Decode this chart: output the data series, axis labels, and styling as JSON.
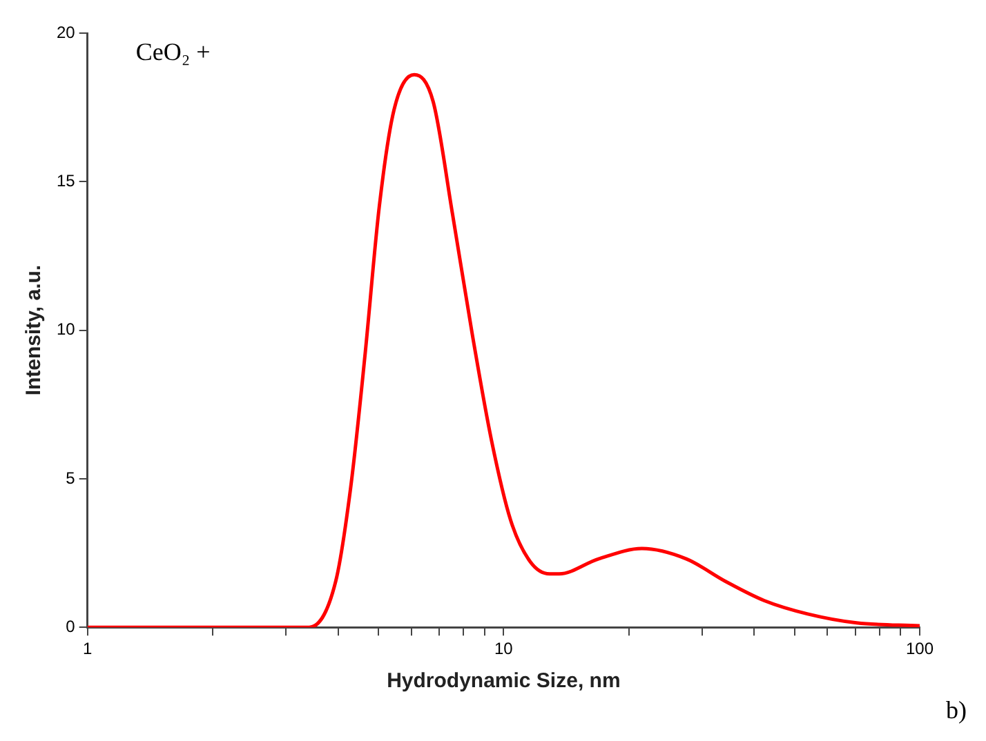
{
  "chart_data": {
    "type": "line",
    "xlabel": "Hydrodynamic Size, nm",
    "ylabel": "Intensity, a.u.",
    "log": "x",
    "annotations": [
      "CeO₂ +",
      "b)"
    ],
    "x": [
      1,
      2,
      3,
      3.41,
      3.95,
      4.29,
      4.64,
      5.03,
      5.45,
      6.1,
      6.77,
      7.54,
      8.4,
      9.35,
      10.4,
      11.6,
      12.9,
      13.6,
      16.9,
      21.5,
      27.5,
      34.1,
      42.3,
      53.8,
      70.5,
      100
    ],
    "series": [
      {
        "color": "#ff0000",
        "values": [
          0,
          0,
          0,
          0,
          1.55,
          4.7,
          9.1,
          14.2,
          17.4,
          18.6,
          17.7,
          13.9,
          9.9,
          6.3,
          3.6,
          2.2,
          1.8,
          1.8,
          2.3,
          2.65,
          2.3,
          1.55,
          0.9,
          0.45,
          0.15,
          0.05
        ]
      }
    ],
    "xlim": [
      1,
      100
    ],
    "xticks": [
      1,
      {
        "value": 2,
        "label": null
      },
      {
        "value": 3,
        "label": null
      },
      {
        "value": 4,
        "label": null
      },
      {
        "value": 5,
        "label": null
      },
      {
        "value": 6,
        "label": null
      },
      {
        "value": 7,
        "label": null
      },
      {
        "value": 8,
        "label": null
      },
      {
        "value": 9,
        "label": null
      },
      10,
      {
        "value": 20,
        "label": null
      },
      {
        "value": 30,
        "label": null
      },
      {
        "value": 40,
        "label": null
      },
      {
        "value": 50,
        "label": null
      },
      {
        "value": 60,
        "label": null
      },
      {
        "value": 70,
        "label": null
      },
      {
        "value": 80,
        "label": null
      },
      {
        "value": 90,
        "label": null
      },
      100
    ],
    "ylim": [
      0,
      20
    ],
    "yticks": [
      0,
      5,
      10,
      15,
      20
    ],
    "grid": false,
    "legend": false,
    "marker": "none",
    "line_style": "solid"
  }
}
